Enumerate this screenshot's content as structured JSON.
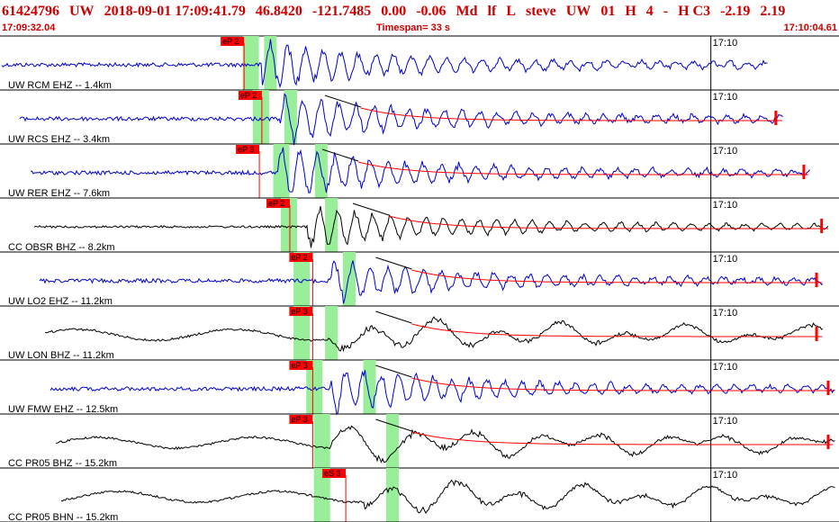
{
  "header": {
    "event_id": "61424796",
    "network": "UW",
    "origin_datetime": "2018-09-01 17:09:41.79",
    "latitude": "46.8420",
    "longitude": "-121.7485",
    "depth": "0.00",
    "magnitude": "-0.06",
    "mag_type": "Md",
    "type_code": "lf",
    "review_code": "L",
    "analyst": "steve",
    "version_network": "UW",
    "version": "01",
    "flag_h": "H",
    "count": "4",
    "dash": "-",
    "quality": "H C3",
    "val1": "-2.19",
    "val2": "2.19"
  },
  "subheader": {
    "start_time": "17:09:32.04",
    "timespan_label": "Timespan=",
    "timespan_value": "33 s",
    "end_time": "17:10:04.61"
  },
  "colors": {
    "title_red": "#cc0000",
    "trace_blue": "#0000cc",
    "trace_black": "#000000",
    "pick_red": "#ff0000",
    "window_green": "#99ee99"
  },
  "chart_data": {
    "type": "line",
    "title": "",
    "xlabel": "",
    "ylabel": "",
    "time_start_s": 0,
    "time_end_s": 33,
    "minute_mark_label": "17:10",
    "minute_mark_time_s": 27.96,
    "traces": [
      {
        "label": "UW RCM EHZ -- 1.4km",
        "color": "blue",
        "pick_label": "eP 2",
        "pick_time_s": 9.6,
        "window_start_s": 9.9,
        "window_end_s": 10.6,
        "signal_end_s": 30.2,
        "has_coda_fit": false,
        "amplitude_level": "high"
      },
      {
        "label": "UW RCS EHZ -- 3.4km",
        "color": "blue",
        "pick_label": "eP 2",
        "pick_time_s": 10.3,
        "window_start_s": 10.3,
        "window_end_s": 11.4,
        "signal_end_s": 30.8,
        "has_coda_fit": true,
        "amplitude_level": "high"
      },
      {
        "label": "UW RER EHZ -- 7.6km",
        "color": "blue",
        "pick_label": "eP 3",
        "pick_time_s": 10.2,
        "window_start_s": 11.1,
        "window_end_s": 12.6,
        "signal_end_s": 31.9,
        "has_coda_fit": true,
        "amplitude_level": "high"
      },
      {
        "label": "CC OBSR BHZ -- 8.2km",
        "color": "black",
        "pick_label": "eP 2",
        "pick_time_s": 11.4,
        "window_start_s": 11.4,
        "window_end_s": 13.0,
        "signal_end_s": 32.6,
        "has_coda_fit": true,
        "amplitude_level": "medium"
      },
      {
        "label": "UW LO2 EHZ -- 11.2km",
        "color": "blue",
        "pick_label": "eP 2",
        "pick_time_s": 12.3,
        "window_start_s": 11.9,
        "window_end_s": 13.7,
        "signal_end_s": 32.4,
        "has_coda_fit": true,
        "amplitude_level": "medium"
      },
      {
        "label": "UW LON BHZ -- 11.2km",
        "color": "black",
        "pick_label": "eP 3",
        "pick_time_s": 12.3,
        "window_start_s": 11.9,
        "window_end_s": 13.0,
        "signal_end_s": 32.4,
        "has_coda_fit": true,
        "amplitude_level": "low"
      },
      {
        "label": "UW FMW EHZ -- 12.5km",
        "color": "blue",
        "pick_label": "eP 3",
        "pick_time_s": 12.3,
        "window_start_s": 12.4,
        "window_end_s": 14.5,
        "signal_end_s": 32.9,
        "has_coda_fit": true,
        "amplitude_level": "high"
      },
      {
        "label": "CC PR05 BHZ -- 15.2km",
        "color": "black",
        "pick_label": "eP 3",
        "pick_time_s": 12.3,
        "window_start_s": 12.7,
        "window_end_s": 15.4,
        "signal_end_s": 33.0,
        "has_coda_fit": true,
        "amplitude_level": "low"
      },
      {
        "label": "CC PR05 BHN -- 15.2km",
        "color": "black",
        "pick_label": "eS 3",
        "pick_time_s": 13.6,
        "window_start_s": 12.7,
        "window_end_s": 15.4,
        "signal_end_s": 33.0,
        "has_coda_fit": false,
        "amplitude_level": "low"
      }
    ]
  }
}
